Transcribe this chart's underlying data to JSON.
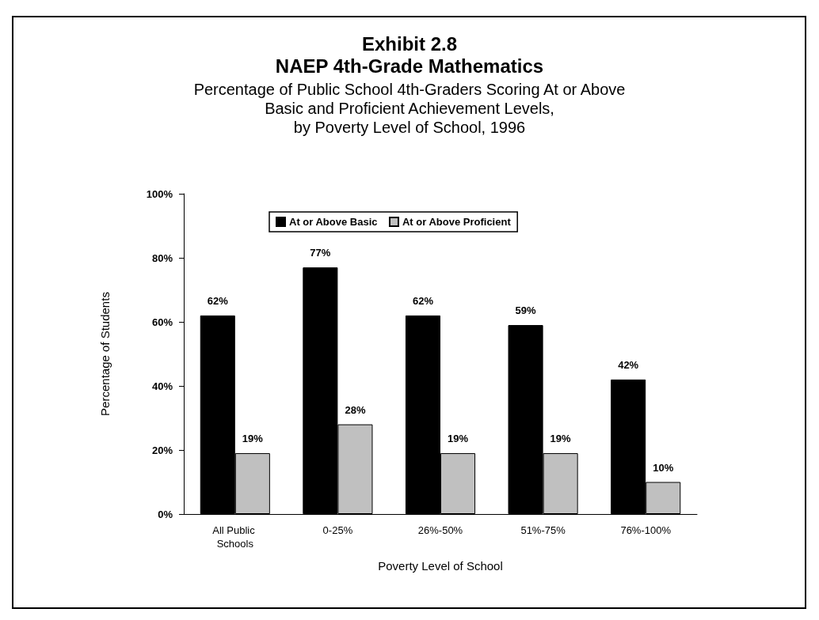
{
  "chart_data": {
    "type": "bar",
    "title": "Exhibit 2.8\nNAEP 4th-Grade Mathematics",
    "subtitle": "Percentage of Public School 4th-Graders Scoring At or Above\nBasic and Proficient Achievement Levels,\nby Poverty Level of School, 1996",
    "xlabel": "Poverty Level of School",
    "ylabel": "Percentage of Students",
    "categories": [
      "All Public Schools",
      "0-25%",
      "26%-50%",
      "51%-75%",
      "76%-100%"
    ],
    "series": [
      {
        "name": "At or Above Basic",
        "color": "#000000",
        "values": [
          62,
          77,
          62,
          59,
          42
        ],
        "value_labels": [
          "62%",
          "77%",
          "62%",
          "59%",
          "42%"
        ]
      },
      {
        "name": "At or Above Proficient",
        "color": "#c0c0c0",
        "values": [
          19,
          28,
          19,
          19,
          10
        ],
        "value_labels": [
          "19%",
          "28%",
          "19%",
          "19%",
          "10%"
        ]
      }
    ],
    "ylim": [
      0,
      100
    ],
    "yticks": [
      {
        "value": 0,
        "label": "0%"
      },
      {
        "value": 20,
        "label": "20%"
      },
      {
        "value": 40,
        "label": "40%"
      },
      {
        "value": 60,
        "label": "60%"
      },
      {
        "value": 80,
        "label": "80%"
      },
      {
        "value": 100,
        "label": "100%"
      }
    ],
    "grid": false,
    "legend": "top"
  }
}
